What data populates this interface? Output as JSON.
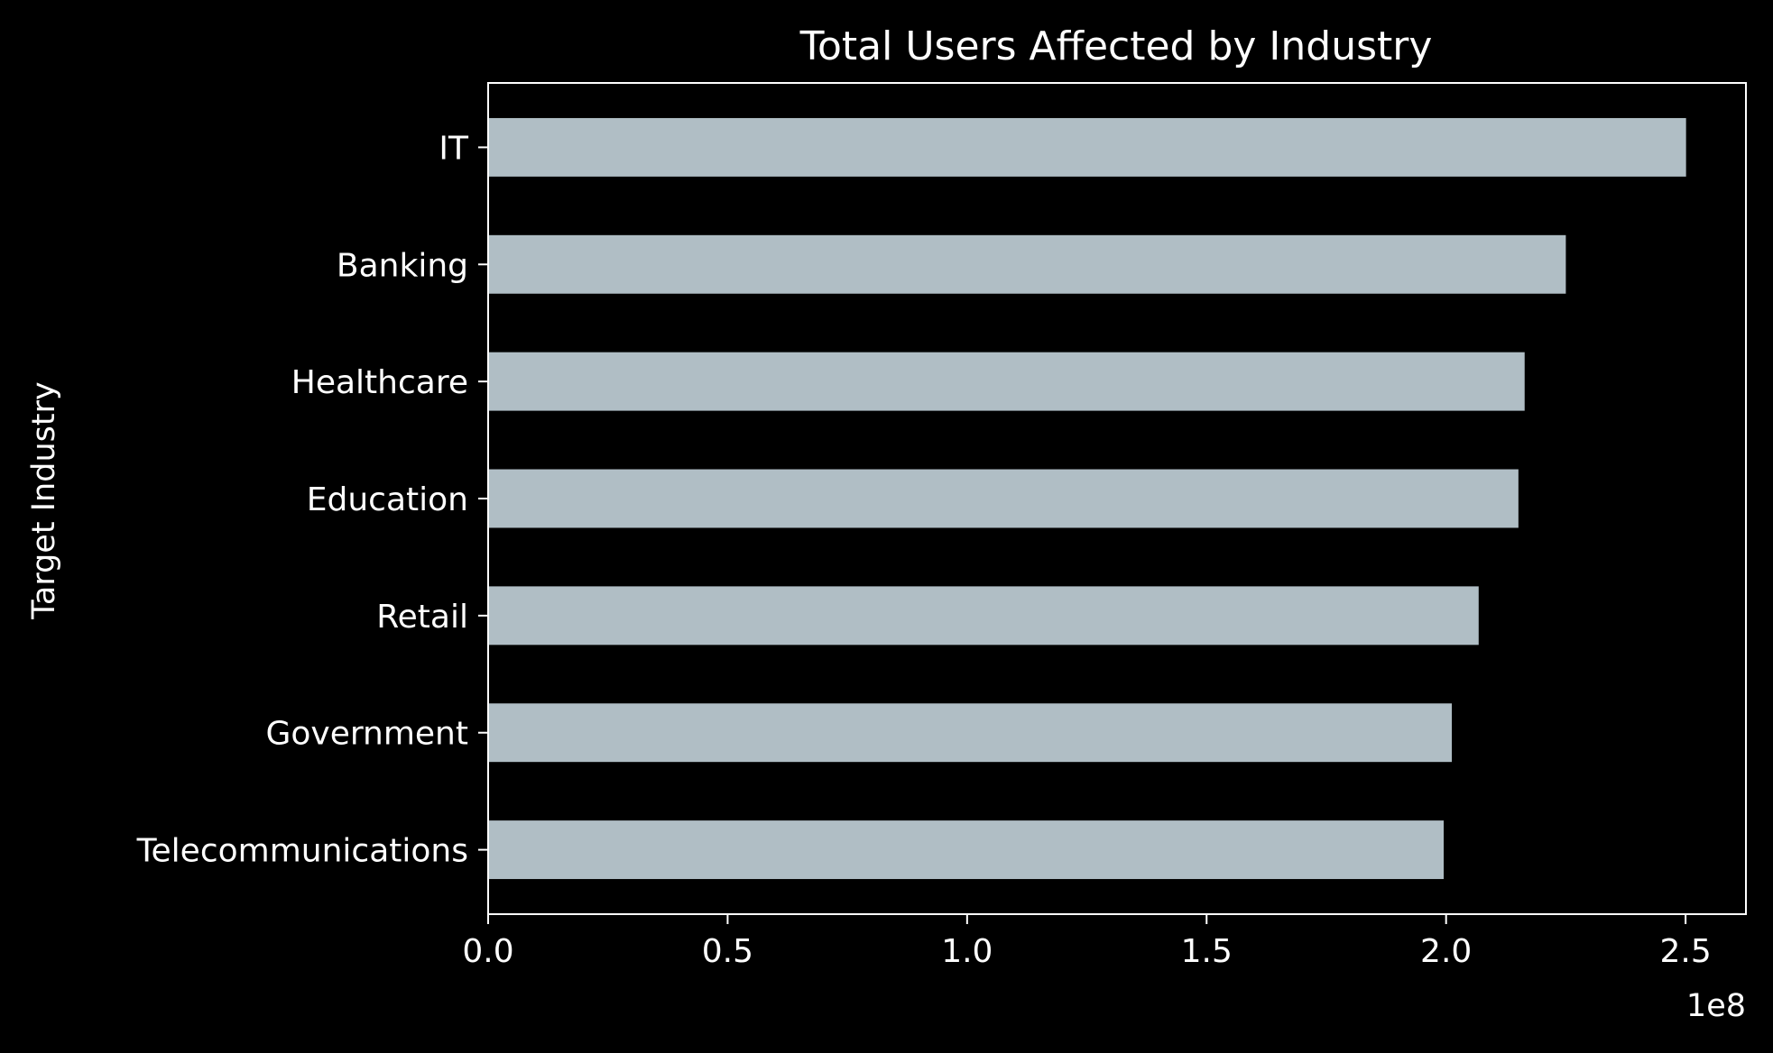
{
  "chart_data": {
    "type": "bar",
    "orientation": "horizontal",
    "title": "Total Users Affected by Industry",
    "xlabel": "",
    "ylabel": "Target Industry",
    "x_offset_label": "1e8",
    "categories": [
      "IT",
      "Banking",
      "Healthcare",
      "Education",
      "Retail",
      "Government",
      "Telecommunications"
    ],
    "values": [
      250100000,
      225000000,
      216400000,
      215100000,
      206800000,
      201200000,
      199500000
    ],
    "xlim": [
      0,
      262600000
    ],
    "xticks": [
      0,
      50000000,
      100000000,
      150000000,
      200000000,
      250000000
    ],
    "xtick_labels": [
      "0.0",
      "0.5",
      "1.0",
      "1.5",
      "2.0",
      "2.5"
    ],
    "grid": false,
    "legend": "none",
    "colors": {
      "background": "#000000",
      "bar": "#b0bec5",
      "axes": "#ffffff",
      "text": "#ffffff"
    }
  }
}
